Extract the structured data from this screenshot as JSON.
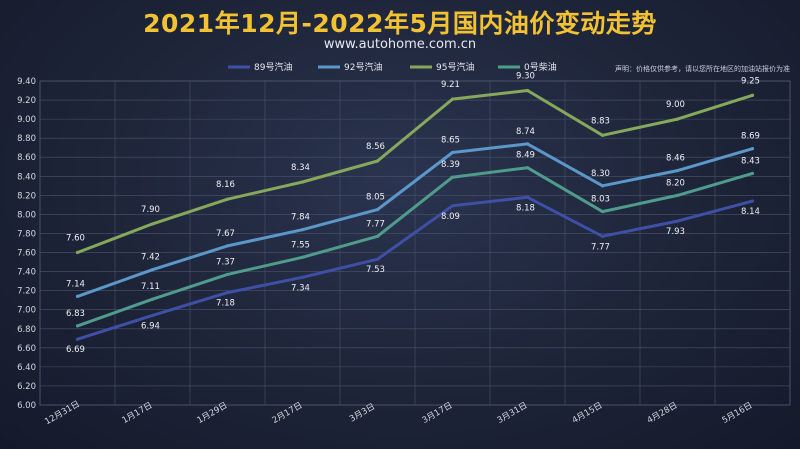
{
  "chart_data": {
    "type": "line",
    "title": "2021年12月-2022年5月国内油价变动走势",
    "subtitle": "www.autohome.com.cn",
    "note": "声明：价格仅供参考，请以您所在地区的加油站报价为准",
    "xlabel": "",
    "ylabel": "",
    "categories": [
      "12月31日",
      "1月17日",
      "1月29日",
      "2月17日",
      "3月3日",
      "3月17日",
      "3月31日",
      "4月15日",
      "4月28日",
      "5月16日"
    ],
    "ylim": [
      6.0,
      9.4
    ],
    "yticks": [
      "6.00",
      "6.20",
      "6.40",
      "6.60",
      "6.80",
      "7.00",
      "7.20",
      "7.40",
      "7.60",
      "7.80",
      "8.00",
      "8.20",
      "8.40",
      "8.60",
      "8.80",
      "9.00",
      "9.20",
      "9.40"
    ],
    "grid": true,
    "legend_position": "top",
    "series": [
      {
        "name": "89号汽油",
        "color": "#3f4fa6",
        "values": [
          6.69,
          6.94,
          7.18,
          7.34,
          7.53,
          8.09,
          8.18,
          7.77,
          7.93,
          8.14
        ],
        "labels": [
          "6.69",
          "6.94",
          "7.18",
          "7.34",
          "7.53",
          "8.09",
          "8.18",
          "7.77",
          "7.93",
          "8.14"
        ]
      },
      {
        "name": "92号汽油",
        "color": "#5b97c9",
        "values": [
          7.14,
          7.42,
          7.67,
          7.84,
          8.05,
          8.65,
          8.74,
          8.3,
          8.46,
          8.69
        ],
        "labels": [
          "7.14",
          "7.42",
          "7.67",
          "7.84",
          "8.05",
          "8.65",
          "8.74",
          "8.30",
          "8.46",
          "8.69"
        ]
      },
      {
        "name": "95号汽油",
        "color": "#86a85a",
        "values": [
          7.6,
          7.9,
          8.16,
          8.34,
          8.56,
          9.21,
          9.3,
          8.83,
          9.0,
          9.25
        ],
        "labels": [
          "7.60",
          "7.90",
          "8.16",
          "8.34",
          "8.56",
          "9.21",
          "9.30",
          "8.83",
          "9.00",
          "9.25"
        ]
      },
      {
        "name": "0号柴油",
        "color": "#4f9c8c",
        "values": [
          6.83,
          7.11,
          7.37,
          7.55,
          7.77,
          8.39,
          8.49,
          8.03,
          8.2,
          8.43
        ],
        "labels": [
          "6.83",
          "7.11",
          "7.37",
          "7.55",
          "7.77",
          "8.39",
          "8.49",
          "8.03",
          "8.20",
          "8.43"
        ]
      }
    ]
  }
}
